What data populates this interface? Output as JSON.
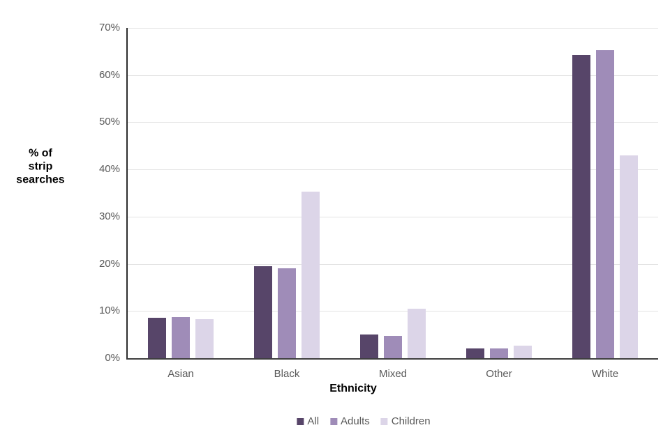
{
  "figure": {
    "background": "#ffffff",
    "y_axis_title_lines": [
      "% of",
      "strip",
      "searches"
    ]
  },
  "chart_data": {
    "type": "bar",
    "xlabel": "Ethnicity",
    "ylabel": "% of strip searches",
    "categories": [
      "Asian",
      "Black",
      "Mixed",
      "Other",
      "White"
    ],
    "series": [
      {
        "name": "All",
        "color": "#574569",
        "values": [
          8.5,
          19.5,
          5.0,
          2.1,
          64.3
        ]
      },
      {
        "name": "Adults",
        "color": "#9F8CB8",
        "values": [
          8.7,
          19.0,
          4.7,
          2.0,
          65.3
        ]
      },
      {
        "name": "Children",
        "color": "#DCD5E8",
        "values": [
          8.3,
          35.3,
          10.5,
          2.6,
          43.0
        ]
      }
    ],
    "ylim": [
      0,
      70
    ],
    "y_ticks": [
      "0%",
      "10%",
      "20%",
      "30%",
      "40%",
      "50%",
      "60%",
      "70%"
    ],
    "y_tick_values": [
      0,
      10,
      20,
      30,
      40,
      50,
      60,
      70
    ],
    "grid": true,
    "legend_position": "bottom"
  },
  "colors": {
    "gridline": "#e3e3e3",
    "axis_line": "#3f3f3f",
    "tick_label": "#595959",
    "legend_label": "#595959"
  }
}
